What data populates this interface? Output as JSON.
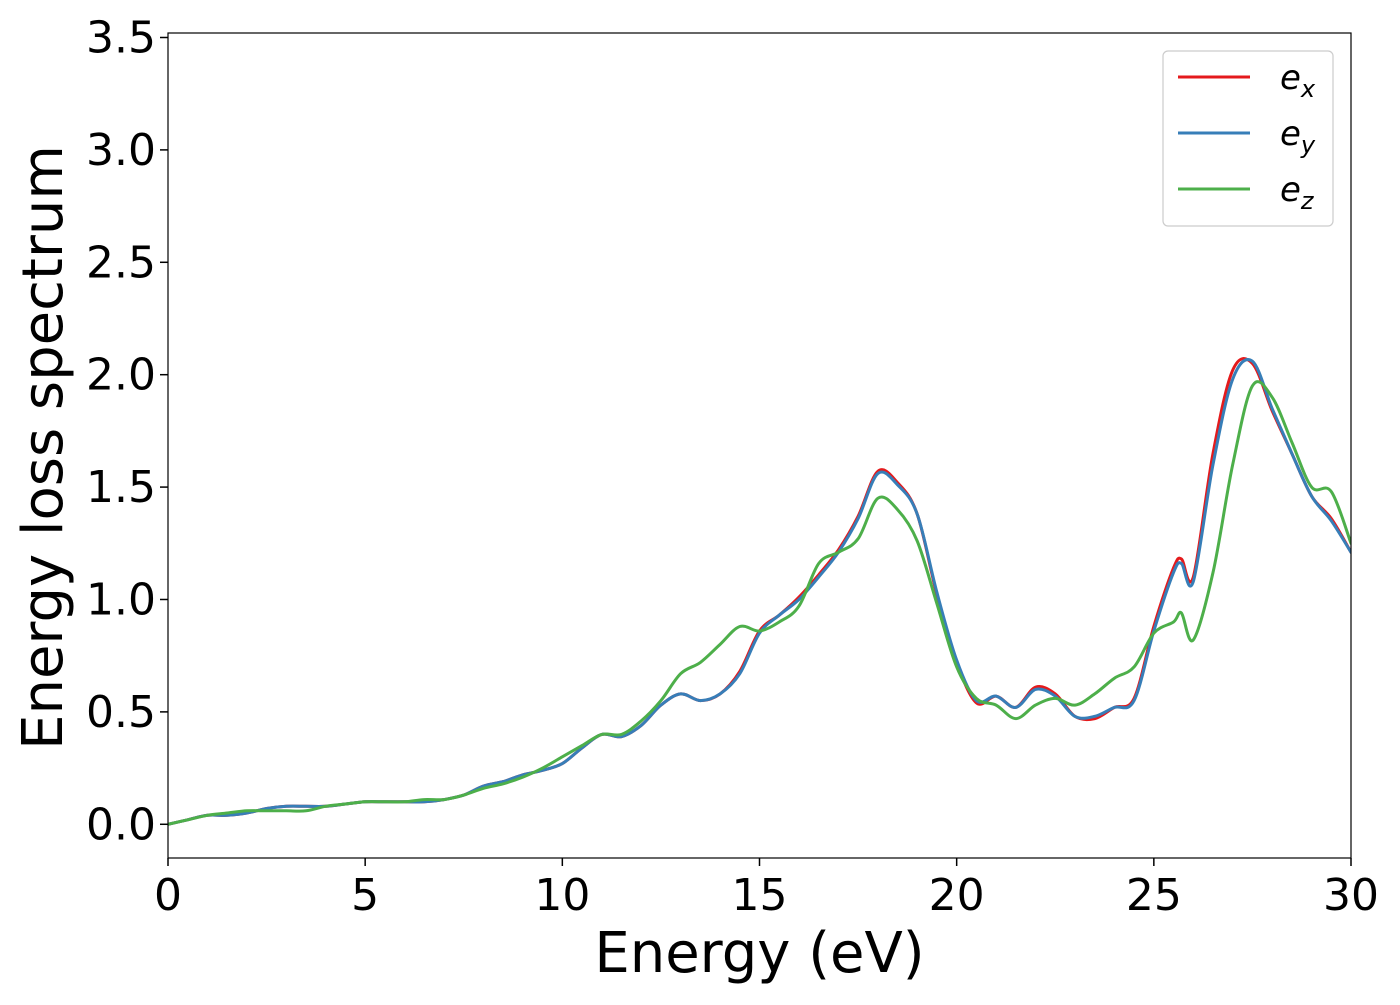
{
  "chart_data": {
    "type": "line",
    "title": "",
    "xlabel": "Energy (eV)",
    "ylabel": "Energy loss spectrum",
    "xlim": [
      0,
      30
    ],
    "ylim": [
      -0.15,
      3.52
    ],
    "xticks": [
      0,
      5,
      10,
      15,
      20,
      25,
      30
    ],
    "xtick_labels": [
      "0",
      "5",
      "10",
      "15",
      "20",
      "25",
      "30"
    ],
    "yticks": [
      0.0,
      0.5,
      1.0,
      1.5,
      2.0,
      2.5,
      3.0,
      3.5
    ],
    "ytick_labels": [
      "0.0",
      "0.5",
      "1.0",
      "1.5",
      "2.0",
      "2.5",
      "3.0",
      "3.5"
    ],
    "grid": false,
    "legend_position": "top-right",
    "series": [
      {
        "name": "e_x",
        "legend_base": "e",
        "legend_sub": "x",
        "color": "#e41a1c",
        "x": [
          0,
          0.5,
          1,
          1.5,
          2,
          2.5,
          3,
          3.5,
          4,
          4.5,
          5,
          5.5,
          6,
          6.5,
          7,
          7.5,
          8,
          8.5,
          9,
          9.5,
          10,
          10.5,
          11,
          11.5,
          12,
          12.5,
          13,
          13.5,
          14,
          14.5,
          15,
          15.5,
          16,
          16.5,
          17,
          17.5,
          18,
          18.5,
          19,
          19.5,
          20,
          20.5,
          21,
          21.5,
          22,
          22.5,
          23,
          23.5,
          24,
          24.5,
          25,
          25.5,
          25.7,
          26,
          26.5,
          27,
          27.5,
          28,
          28.5,
          29,
          29.5,
          30
        ],
        "y": [
          0.0,
          0.02,
          0.04,
          0.04,
          0.05,
          0.07,
          0.08,
          0.08,
          0.08,
          0.09,
          0.1,
          0.1,
          0.1,
          0.1,
          0.11,
          0.13,
          0.17,
          0.19,
          0.22,
          0.24,
          0.27,
          0.34,
          0.4,
          0.39,
          0.44,
          0.53,
          0.58,
          0.55,
          0.58,
          0.68,
          0.86,
          0.93,
          1.01,
          1.11,
          1.22,
          1.37,
          1.57,
          1.52,
          1.38,
          1.02,
          0.72,
          0.54,
          0.57,
          0.52,
          0.61,
          0.58,
          0.48,
          0.47,
          0.52,
          0.56,
          0.88,
          1.14,
          1.18,
          1.1,
          1.65,
          2.02,
          2.05,
          1.84,
          1.65,
          1.46,
          1.36,
          1.21
        ]
      },
      {
        "name": "e_y",
        "legend_base": "e",
        "legend_sub": "y",
        "color": "#377eb8",
        "x": [
          0,
          0.5,
          1,
          1.5,
          2,
          2.5,
          3,
          3.5,
          4,
          4.5,
          5,
          5.5,
          6,
          6.5,
          7,
          7.5,
          8,
          8.5,
          9,
          9.5,
          10,
          10.5,
          11,
          11.5,
          12,
          12.5,
          13,
          13.5,
          14,
          14.5,
          15,
          15.5,
          16,
          16.5,
          17,
          17.5,
          18,
          18.5,
          19,
          19.5,
          20,
          20.5,
          21,
          21.5,
          22,
          22.5,
          23,
          23.5,
          24,
          24.5,
          25,
          25.5,
          25.7,
          26,
          26.5,
          27,
          27.5,
          28,
          28.5,
          29,
          29.5,
          30
        ],
        "y": [
          0.0,
          0.02,
          0.04,
          0.04,
          0.05,
          0.07,
          0.08,
          0.08,
          0.08,
          0.09,
          0.1,
          0.1,
          0.1,
          0.1,
          0.11,
          0.13,
          0.17,
          0.19,
          0.22,
          0.24,
          0.27,
          0.34,
          0.4,
          0.39,
          0.44,
          0.53,
          0.58,
          0.55,
          0.58,
          0.67,
          0.85,
          0.93,
          1.0,
          1.1,
          1.21,
          1.36,
          1.56,
          1.51,
          1.38,
          1.03,
          0.73,
          0.55,
          0.57,
          0.52,
          0.6,
          0.57,
          0.48,
          0.48,
          0.52,
          0.55,
          0.86,
          1.12,
          1.16,
          1.08,
          1.6,
          1.98,
          2.06,
          1.85,
          1.65,
          1.46,
          1.35,
          1.21
        ]
      },
      {
        "name": "e_z",
        "legend_base": "e",
        "legend_sub": "z",
        "color": "#4daf4a",
        "x": [
          0,
          0.5,
          1,
          1.5,
          2,
          2.5,
          3,
          3.5,
          4,
          4.5,
          5,
          5.5,
          6,
          6.5,
          7,
          7.5,
          8,
          8.5,
          9,
          9.5,
          10,
          10.5,
          11,
          11.5,
          12,
          12.5,
          13,
          13.5,
          14,
          14.5,
          15,
          15.5,
          16,
          16.5,
          17,
          17.5,
          18,
          18.5,
          19,
          19.5,
          20,
          20.5,
          21,
          21.5,
          22,
          22.5,
          23,
          23.5,
          24,
          24.5,
          25,
          25.5,
          25.7,
          26,
          26.5,
          27,
          27.5,
          28,
          28.5,
          29,
          29.5,
          30
        ],
        "y": [
          0.0,
          0.02,
          0.04,
          0.05,
          0.06,
          0.06,
          0.06,
          0.06,
          0.08,
          0.09,
          0.1,
          0.1,
          0.1,
          0.11,
          0.11,
          0.13,
          0.16,
          0.18,
          0.21,
          0.25,
          0.3,
          0.35,
          0.4,
          0.4,
          0.46,
          0.55,
          0.67,
          0.72,
          0.8,
          0.88,
          0.86,
          0.9,
          0.97,
          1.16,
          1.21,
          1.27,
          1.45,
          1.4,
          1.26,
          0.98,
          0.7,
          0.56,
          0.53,
          0.47,
          0.53,
          0.56,
          0.53,
          0.58,
          0.65,
          0.7,
          0.85,
          0.9,
          0.94,
          0.82,
          1.12,
          1.6,
          1.95,
          1.9,
          1.7,
          1.5,
          1.48,
          1.25
        ]
      }
    ]
  }
}
